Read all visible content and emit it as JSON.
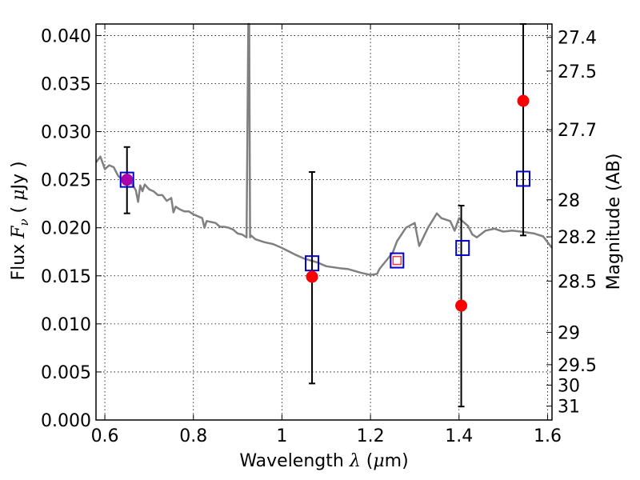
{
  "chart_data": {
    "type": "scatter",
    "title": "",
    "xlabel_parts": {
      "pre": "Wavelength  ",
      "sym": "λ",
      "post": " (",
      "mu": "μ",
      "unit": "m)"
    },
    "ylabel_parts": {
      "pre": "Flux  ",
      "sym": "F",
      "sub": "ν",
      "mid": "  ( ",
      "mu": "μ",
      "unit": "Jy )"
    },
    "y2label": "Magnitude (AB)",
    "xlim": [
      0.58,
      1.61
    ],
    "ylim": [
      0.0,
      0.0412
    ],
    "grid": true,
    "xticks": [
      {
        "value": 0.6,
        "label": "0.6"
      },
      {
        "value": 0.8,
        "label": "0.8"
      },
      {
        "value": 1.0,
        "label": "1"
      },
      {
        "value": 1.2,
        "label": "1.2"
      },
      {
        "value": 1.4,
        "label": "1.4"
      },
      {
        "value": 1.6,
        "label": "1.6"
      }
    ],
    "yticks": [
      {
        "value": 0.0,
        "label": "0.000"
      },
      {
        "value": 0.005,
        "label": "0.005"
      },
      {
        "value": 0.01,
        "label": "0.010"
      },
      {
        "value": 0.015,
        "label": "0.015"
      },
      {
        "value": 0.02,
        "label": "0.020"
      },
      {
        "value": 0.025,
        "label": "0.025"
      },
      {
        "value": 0.03,
        "label": "0.030"
      },
      {
        "value": 0.035,
        "label": "0.035"
      },
      {
        "value": 0.04,
        "label": "0.040"
      }
    ],
    "y2ticks": [
      {
        "value": 27.4,
        "label": "27.4"
      },
      {
        "value": 27.5,
        "label": "27.5"
      },
      {
        "value": 27.7,
        "label": "27.7"
      },
      {
        "value": 28.0,
        "label": "28"
      },
      {
        "value": 28.2,
        "label": "28.2"
      },
      {
        "value": 28.5,
        "label": "28.5"
      },
      {
        "value": 29.0,
        "label": "29"
      },
      {
        "value": 29.5,
        "label": "29.5"
      },
      {
        "value": 30.0,
        "label": "30"
      },
      {
        "value": 31.0,
        "label": "31"
      }
    ],
    "spectrum": {
      "color": "#808080",
      "x": [
        0.58,
        0.59,
        0.6,
        0.61,
        0.62,
        0.63,
        0.64,
        0.65,
        0.66,
        0.67,
        0.675,
        0.68,
        0.685,
        0.69,
        0.7,
        0.71,
        0.72,
        0.73,
        0.74,
        0.75,
        0.755,
        0.76,
        0.77,
        0.78,
        0.79,
        0.8,
        0.81,
        0.82,
        0.825,
        0.83,
        0.84,
        0.85,
        0.86,
        0.87,
        0.88,
        0.89,
        0.9,
        0.91,
        0.92,
        0.924,
        0.926,
        0.928,
        0.93,
        0.94,
        0.96,
        0.98,
        1.0,
        1.03,
        1.05,
        1.08,
        1.1,
        1.13,
        1.15,
        1.18,
        1.2,
        1.215,
        1.22,
        1.25,
        1.26,
        1.28,
        1.3,
        1.31,
        1.33,
        1.35,
        1.36,
        1.38,
        1.39,
        1.4,
        1.42,
        1.43,
        1.44,
        1.46,
        1.48,
        1.5,
        1.52,
        1.54,
        1.57,
        1.59,
        1.61
      ],
      "y": [
        0.0268,
        0.0274,
        0.0261,
        0.0265,
        0.0263,
        0.0254,
        0.025,
        0.0252,
        0.0247,
        0.0239,
        0.0227,
        0.0244,
        0.0238,
        0.0245,
        0.024,
        0.0238,
        0.0234,
        0.0234,
        0.0228,
        0.0231,
        0.0216,
        0.0222,
        0.0219,
        0.0217,
        0.0217,
        0.0214,
        0.0212,
        0.021,
        0.02,
        0.0207,
        0.0206,
        0.0205,
        0.0201,
        0.0201,
        0.02,
        0.0198,
        0.0194,
        0.0193,
        0.019,
        0.0412,
        0.0412,
        0.019,
        0.0192,
        0.0188,
        0.0185,
        0.0183,
        0.0179,
        0.0172,
        0.0168,
        0.0164,
        0.016,
        0.0158,
        0.0157,
        0.0153,
        0.0151,
        0.0152,
        0.0157,
        0.0174,
        0.0186,
        0.02,
        0.0205,
        0.0181,
        0.02,
        0.0215,
        0.021,
        0.0207,
        0.0197,
        0.021,
        0.0202,
        0.0193,
        0.019,
        0.0197,
        0.0199,
        0.0196,
        0.0197,
        0.0196,
        0.0194,
        0.0191,
        0.0179
      ]
    },
    "points": [
      {
        "x": 0.65,
        "y": 0.025,
        "err_lo": 0.0215,
        "err_hi": 0.0284,
        "color": "#ff0000",
        "marker": "circle"
      },
      {
        "x": 1.068,
        "y": 0.0149,
        "err_lo": 0.0038,
        "err_hi": 0.0258,
        "color": "#ff0000",
        "marker": "circle"
      },
      {
        "x": 1.405,
        "y": 0.0119,
        "err_lo": 0.0014,
        "err_hi": 0.0223,
        "color": "#ff0000",
        "marker": "circle"
      },
      {
        "x": 1.545,
        "y": 0.0332,
        "err_lo": 0.0192,
        "err_hi": 0.0412,
        "color": "#ff0000",
        "marker": "circle"
      }
    ],
    "model_points": [
      {
        "x": 0.65,
        "y": 0.025,
        "color": "#0000cc",
        "marker": "square"
      },
      {
        "x": 1.068,
        "y": 0.0163,
        "color": "#0000cc",
        "marker": "square"
      },
      {
        "x": 1.26,
        "y": 0.0166,
        "color": "#0000cc",
        "marker": "square"
      },
      {
        "x": 1.408,
        "y": 0.0179,
        "color": "#0000cc",
        "marker": "square"
      },
      {
        "x": 1.545,
        "y": 0.0251,
        "color": "#0000cc",
        "marker": "square"
      }
    ],
    "extra_marker": {
      "x": 1.26,
      "y": 0.0166,
      "color": "#ff3333",
      "marker": "small-square"
    },
    "overlap_color": "#aa00aa",
    "errorbar_color": "#000000"
  }
}
